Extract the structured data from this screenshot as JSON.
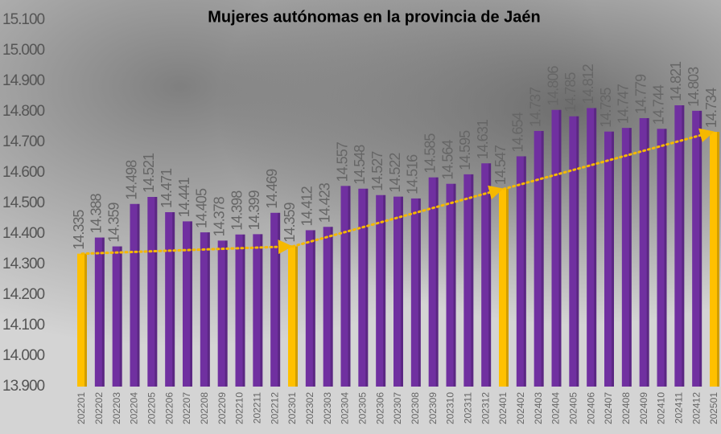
{
  "chart_data": {
    "type": "bar",
    "title": "Mujeres autónomas en la provincia de Jaén",
    "categories": [
      "202201",
      "202202",
      "202203",
      "202204",
      "202205",
      "202206",
      "202207",
      "202208",
      "202209",
      "202210",
      "202211",
      "202212",
      "202301",
      "202302",
      "202303",
      "202304",
      "202305",
      "202306",
      "202307",
      "202308",
      "202309",
      "202310",
      "202311",
      "202312",
      "202401",
      "202402",
      "202403",
      "202404",
      "202405",
      "202406",
      "202407",
      "202408",
      "202409",
      "202410",
      "202411",
      "202412",
      "202501"
    ],
    "values": [
      14335,
      14388,
      14359,
      14498,
      14521,
      14471,
      14441,
      14405,
      14378,
      14398,
      14399,
      14469,
      14359,
      14412,
      14423,
      14557,
      14548,
      14527,
      14522,
      14516,
      14585,
      14564,
      14595,
      14631,
      14547,
      14654,
      14737,
      14806,
      14785,
      14812,
      14735,
      14747,
      14779,
      14744,
      14821,
      14803,
      14734
    ],
    "value_labels": [
      "14.335",
      "14.388",
      "14.359",
      "14.498",
      "14.521",
      "14.471",
      "14.441",
      "14.405",
      "14.378",
      "14.398",
      "14.399",
      "14.469",
      "14.359",
      "14.412",
      "14.423",
      "14.557",
      "14.548",
      "14.527",
      "14.522",
      "14.516",
      "14.585",
      "14.564",
      "14.595",
      "14.631",
      "14.547",
      "14.654",
      "14.737",
      "14.806",
      "14.785",
      "14.812",
      "14.735",
      "14.747",
      "14.779",
      "14.744",
      "14.821",
      "14.803",
      "14.734"
    ],
    "colors": [
      "#ffc000",
      "#7030a0",
      "#7030a0",
      "#7030a0",
      "#7030a0",
      "#7030a0",
      "#7030a0",
      "#7030a0",
      "#7030a0",
      "#7030a0",
      "#7030a0",
      "#7030a0",
      "#ffc000",
      "#7030a0",
      "#7030a0",
      "#7030a0",
      "#7030a0",
      "#7030a0",
      "#7030a0",
      "#7030a0",
      "#7030a0",
      "#7030a0",
      "#7030a0",
      "#7030a0",
      "#ffc000",
      "#7030a0",
      "#7030a0",
      "#7030a0",
      "#7030a0",
      "#7030a0",
      "#7030a0",
      "#7030a0",
      "#7030a0",
      "#7030a0",
      "#7030a0",
      "#7030a0",
      "#ffc000"
    ],
    "trend_color": "#f5b800",
    "ylim": [
      13900,
      15100
    ],
    "yticks": [
      {
        "value": 13900,
        "label": "13.900"
      },
      {
        "value": 14000,
        "label": "14.000"
      },
      {
        "value": 14100,
        "label": "14.100"
      },
      {
        "value": 14200,
        "label": "14.200"
      },
      {
        "value": 14300,
        "label": "14.300"
      },
      {
        "value": 14400,
        "label": "14.400"
      },
      {
        "value": 14500,
        "label": "14.500"
      },
      {
        "value": 14600,
        "label": "14.600"
      },
      {
        "value": 14700,
        "label": "14.700"
      },
      {
        "value": 14800,
        "label": "14.800"
      },
      {
        "value": 14900,
        "label": "14.900"
      },
      {
        "value": 15000,
        "label": "15.000"
      },
      {
        "value": 15100,
        "label": "15.100"
      }
    ]
  }
}
